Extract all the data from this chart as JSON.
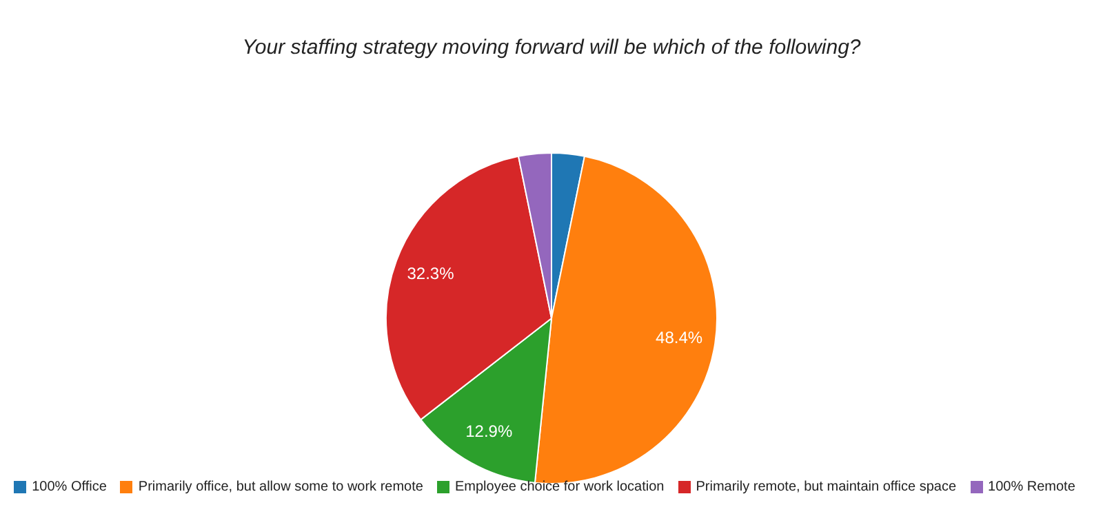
{
  "chart_data": {
    "type": "pie",
    "title": "Your staffing strategy moving forward will be which of the following?",
    "categories": [
      "100% Office",
      "Primarily office, but allow some to work remote",
      "Employee choice for work location",
      "Primarily remote, but maintain office space",
      "100% Remote"
    ],
    "values": [
      3.2,
      48.4,
      12.9,
      32.3,
      3.2
    ],
    "colors": [
      "#1f77b4",
      "#ff7f0e",
      "#2ca02c",
      "#d62728",
      "#9467bd"
    ],
    "value_labels": [
      null,
      "48.4%",
      "12.9%",
      "32.3%",
      null
    ],
    "legend": "bottom"
  }
}
